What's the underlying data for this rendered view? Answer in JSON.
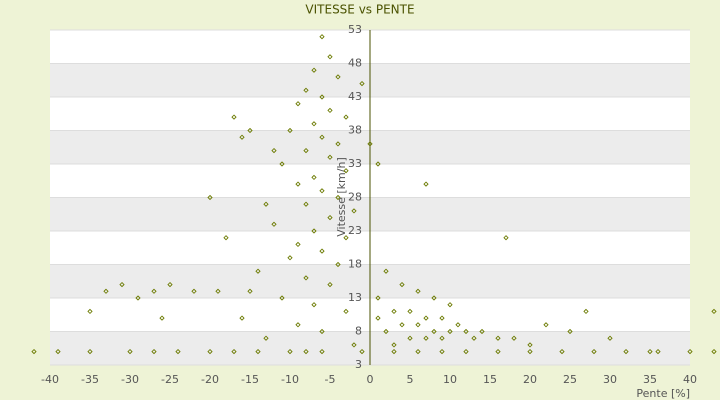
{
  "chart_data": {
    "type": "scatter",
    "title": "VITESSE vs PENTE",
    "x_label": "Pente [%]",
    "y_label": "Vitesse [km/h]",
    "color": "#6b7a00",
    "xlim": [
      -40,
      40
    ],
    "xticks": [
      -40,
      -35,
      -30,
      -25,
      -20,
      -15,
      -10,
      -5,
      0,
      5,
      10,
      15,
      20,
      25,
      30,
      35,
      40
    ],
    "ylim": [
      3,
      53
    ],
    "yticks": [
      3,
      8,
      13,
      18,
      23,
      28,
      33,
      38,
      43,
      48,
      53
    ],
    "grid": true,
    "x": [
      -6,
      -5,
      -7,
      -4,
      -8,
      -6,
      -9,
      -5,
      -3,
      -7,
      -10,
      -6,
      -4,
      -8,
      -5,
      -11,
      -3,
      -7,
      -9,
      -6,
      -4,
      -8,
      -2,
      -5,
      -12,
      -7,
      -3,
      -9,
      -6,
      -10,
      -4,
      -14,
      -8,
      -5,
      -15,
      -11,
      -7,
      -3,
      -16,
      -9,
      -6,
      -13,
      -2,
      -8,
      -42,
      -39,
      -35,
      -30,
      -27,
      -24,
      -20,
      -17,
      -14,
      -10,
      -6,
      -1,
      3,
      6,
      9,
      12,
      16,
      20,
      24,
      28,
      32,
      36,
      40,
      43,
      2,
      4,
      6,
      8,
      10,
      3,
      5,
      7,
      9,
      11,
      4,
      6,
      8,
      10,
      12,
      14,
      2,
      5,
      7,
      9,
      13,
      16,
      18,
      20,
      3,
      1,
      1,
      22,
      25,
      27,
      30,
      17,
      7,
      0,
      1,
      -1,
      -33,
      -35,
      -27,
      -25,
      -22,
      -20,
      -17,
      -16,
      -29,
      -26,
      -19,
      -31,
      -18,
      -13,
      -15,
      -12,
      43,
      35
    ],
    "values": [
      52,
      49,
      47,
      46,
      44,
      43,
      42,
      41,
      40,
      39,
      38,
      37,
      36,
      35,
      34,
      33,
      32,
      31,
      30,
      29,
      28,
      27,
      26,
      25,
      24,
      23,
      22,
      21,
      20,
      19,
      18,
      17,
      16,
      15,
      14,
      13,
      12,
      11,
      10,
      9,
      8,
      7,
      6,
      5,
      5,
      5,
      5,
      5,
      5,
      5,
      5,
      5,
      5,
      5,
      5,
      5,
      5,
      5,
      5,
      5,
      5,
      5,
      5,
      5,
      5,
      5,
      5,
      5,
      17,
      15,
      14,
      13,
      12,
      11,
      11,
      10,
      10,
      9,
      9,
      9,
      8,
      8,
      8,
      8,
      8,
      7,
      7,
      7,
      7,
      7,
      7,
      6,
      6,
      10,
      13,
      9,
      8,
      11,
      7,
      22,
      30,
      36,
      33,
      45,
      14,
      11,
      14,
      15,
      14,
      28,
      40,
      37,
      13,
      10,
      14,
      15,
      22,
      27,
      38,
      35,
      11,
      5
    ]
  }
}
